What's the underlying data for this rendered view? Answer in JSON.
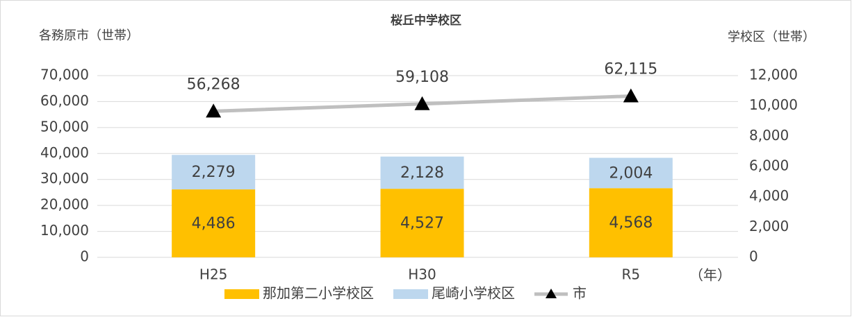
{
  "chart_data": {
    "type": "bar",
    "title": "桜丘中学校区",
    "y_axis_label": "各務原市（世帯）",
    "y2_axis_label": "学校区（世帯）",
    "x_axis_label": "（年）",
    "categories": [
      "H25",
      "H30",
      "R5"
    ],
    "series": [
      {
        "name": "那加第二小学校区",
        "type": "bar",
        "axis": "y2",
        "color": "#ffc000",
        "values": [
          4486,
          4527,
          4568
        ],
        "value_labels": [
          "4,486",
          "4,527",
          "4,568"
        ]
      },
      {
        "name": "尾崎小学校区",
        "type": "bar",
        "axis": "y2",
        "color": "#bdd7ee",
        "values": [
          2279,
          2128,
          2004
        ],
        "value_labels": [
          "2,279",
          "2,128",
          "2,004"
        ]
      },
      {
        "name": "市",
        "type": "line",
        "color": "#bfbfbf",
        "marker_color": "#000000",
        "values": [
          56268,
          59108,
          62115
        ],
        "value_labels": [
          "56,268",
          "59,108",
          "62,115"
        ]
      }
    ],
    "ylim": [
      0,
      70000
    ],
    "yticks": [
      0,
      {
        "value": 10000,
        "label": "10,000"
      },
      {
        "value": 20000,
        "label": "20,000"
      },
      {
        "value": 30000,
        "label": "30,000"
      },
      {
        "value": 40000,
        "label": "40,000"
      },
      {
        "value": 50000,
        "label": "50,000"
      },
      {
        "value": 60000,
        "label": "60,000"
      },
      {
        "value": 70000,
        "label": "70,000"
      }
    ],
    "y2lim": [
      0,
      12000
    ],
    "y2ticks": [
      0,
      {
        "value": 2000,
        "label": "2,000"
      },
      {
        "value": 4000,
        "label": "4,000"
      },
      {
        "value": 6000,
        "label": "6,000"
      },
      {
        "value": 8000,
        "label": "8,000"
      },
      {
        "value": 10000,
        "label": "10,000"
      },
      {
        "value": 12000,
        "label": "12,000"
      }
    ],
    "grid": true,
    "legend": "bottom"
  }
}
